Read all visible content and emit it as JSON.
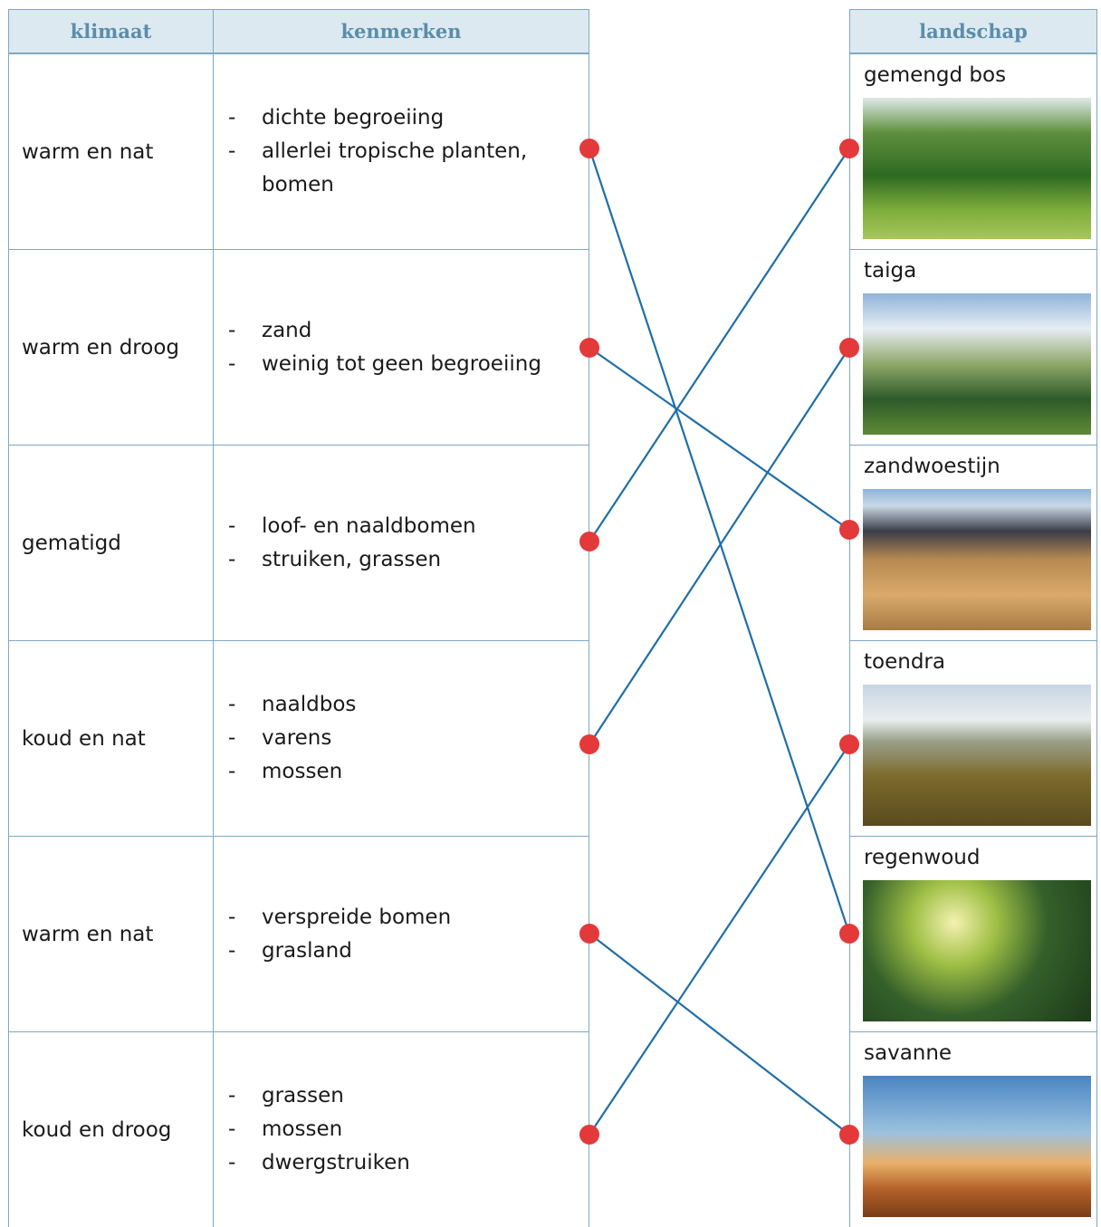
{
  "table": {
    "headers": [
      "klimaat",
      "kenmerken"
    ],
    "rows": [
      {
        "climate": "warm en nat",
        "features": [
          "dichte begroeiing",
          "allerlei tropische planten, bomen"
        ]
      },
      {
        "climate": "warm en droog",
        "features": [
          "zand",
          "weinig tot geen begroeiing"
        ]
      },
      {
        "climate": "gematigd",
        "features": [
          "loof- en naaldbomen",
          "struiken, grassen"
        ]
      },
      {
        "climate": "koud en nat",
        "features": [
          "naaldbos",
          "varens",
          "mossen"
        ]
      },
      {
        "climate": "warm en nat",
        "features": [
          "verspreide bomen",
          "grasland"
        ]
      },
      {
        "climate": "koud en droog",
        "features": [
          "grassen",
          "mossen",
          "dwergstruiken"
        ]
      }
    ]
  },
  "landscapes": {
    "header": "landschap",
    "items": [
      "gemengd bos",
      "taiga",
      "zandwoestijn",
      "toendra",
      "regenwoud",
      "savanne"
    ]
  }
}
